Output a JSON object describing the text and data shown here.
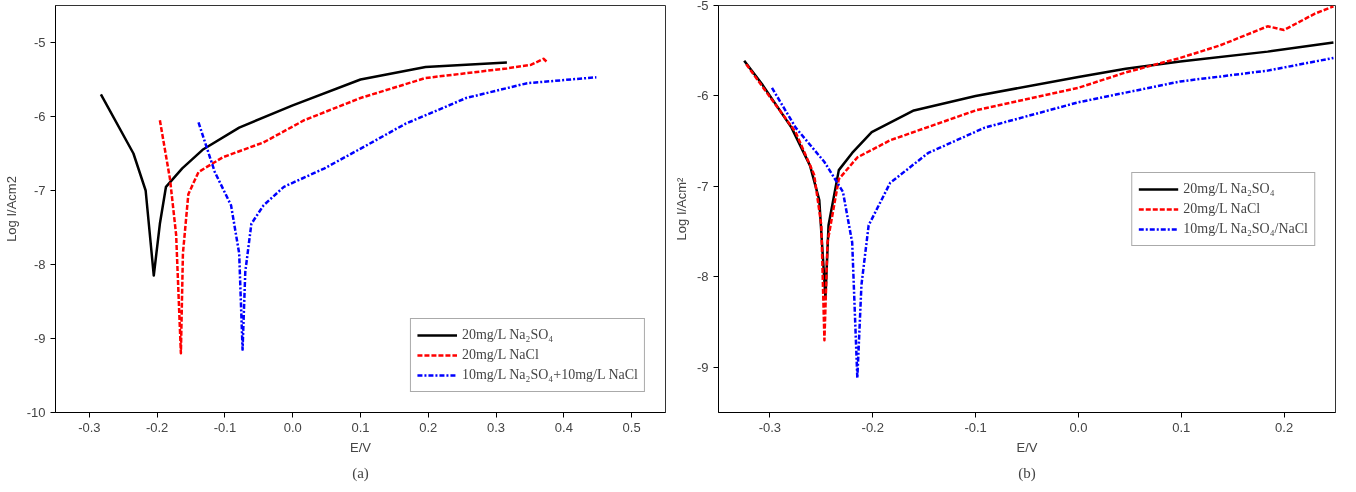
{
  "chart_data": [
    {
      "type": "line",
      "xlabel": "E/V",
      "ylabel": "Log I/Acm2",
      "xlim": [
        -0.35,
        0.55
      ],
      "ylim": [
        -10,
        -4.5
      ],
      "xticks": [
        -0.3,
        -0.2,
        -0.1,
        {
          "value": 0,
          "label": "0.0"
        },
        0.1,
        0.2,
        0.3,
        0.4,
        0.5
      ],
      "yticks": [
        -10,
        -9,
        -8,
        -7,
        -6,
        -5
      ],
      "grid": false,
      "legend": "bottom right",
      "annotations": [
        "(a)"
      ],
      "series": [
        {
          "name": "20mg/L Na₂SO₄",
          "color": "#000000",
          "line_style": "solid",
          "x": [
            -0.283,
            -0.235,
            -0.217,
            -0.205,
            -0.196,
            -0.187,
            -0.163,
            -0.133,
            -0.079,
            0.0,
            0.1,
            0.196,
            0.316
          ],
          "values": [
            -5.7,
            -6.5,
            -7.0,
            -8.15,
            -7.45,
            -6.95,
            -6.7,
            -6.45,
            -6.15,
            -5.85,
            -5.5,
            -5.33,
            -5.27
          ]
        },
        {
          "name": "20mg/L NaCl",
          "color": "#ff0000",
          "line_style": "dashed",
          "x": [
            -0.196,
            -0.181,
            -0.172,
            -0.165,
            -0.162,
            -0.154,
            -0.139,
            -0.103,
            -0.043,
            0.017,
            0.1,
            0.196,
            0.316,
            0.352,
            0.37,
            0.376
          ],
          "values": [
            -6.05,
            -6.85,
            -7.6,
            -9.2,
            -7.85,
            -7.05,
            -6.75,
            -6.55,
            -6.35,
            -6.05,
            -5.75,
            -5.48,
            -5.35,
            -5.3,
            -5.22,
            -5.27
          ]
        },
        {
          "name": "10mg/L Na₂SO₄+10mg/L NaCl",
          "color": "#0000ff",
          "line_style": "dashdot",
          "x": [
            -0.139,
            -0.115,
            -0.091,
            -0.079,
            -0.074,
            -0.07,
            -0.061,
            -0.043,
            -0.013,
            0.047,
            0.107,
            0.166,
            0.256,
            0.346,
            0.448
          ],
          "values": [
            -6.08,
            -6.75,
            -7.2,
            -7.85,
            -9.15,
            -8.1,
            -7.45,
            -7.2,
            -6.95,
            -6.7,
            -6.4,
            -6.1,
            -5.75,
            -5.55,
            -5.47
          ]
        }
      ]
    },
    {
      "type": "line",
      "xlabel": "E/V",
      "ylabel": "Log I/Acm²",
      "xlim": [
        -0.35,
        0.25
      ],
      "ylim": [
        -9.5,
        -5
      ],
      "xticks": [
        -0.3,
        -0.2,
        -0.1,
        {
          "value": 0,
          "label": "0.0"
        },
        0.1,
        0.2
      ],
      "yticks": [
        -9,
        -8,
        -7,
        -6,
        -5
      ],
      "grid": false,
      "legend": "right",
      "annotations": [
        "(b)"
      ],
      "series": [
        {
          "name": "20mg/L Na₂SO₄",
          "color": "#000000",
          "line_style": "solid",
          "x": [
            -0.325,
            -0.307,
            -0.279,
            -0.261,
            -0.252,
            -0.246,
            -0.243,
            -0.233,
            -0.22,
            -0.201,
            -0.16,
            -0.1,
            0.0,
            0.046,
            0.099,
            0.184,
            0.248
          ],
          "values": [
            -5.61,
            -5.88,
            -6.35,
            -6.77,
            -7.15,
            -8.23,
            -7.43,
            -6.82,
            -6.63,
            -6.4,
            -6.16,
            -6.0,
            -5.79,
            -5.7,
            -5.62,
            -5.51,
            -5.41
          ]
        },
        {
          "name": "20mg/L NaCl",
          "color": "#ff0000",
          "line_style": "dashed",
          "x": [
            -0.323,
            -0.302,
            -0.275,
            -0.257,
            -0.25,
            -0.247,
            -0.244,
            -0.233,
            -0.215,
            -0.183,
            -0.1,
            0.0,
            0.046,
            0.099,
            0.138,
            0.184,
            0.2,
            0.23,
            0.248
          ],
          "values": [
            -5.65,
            -5.98,
            -6.4,
            -6.87,
            -7.43,
            -8.7,
            -7.62,
            -6.92,
            -6.68,
            -6.49,
            -6.16,
            -5.91,
            -5.74,
            -5.58,
            -5.44,
            -5.23,
            -5.27,
            -5.09,
            -5.01
          ]
        },
        {
          "name": "10mg/L Na₂SO₄/NaCl",
          "color": "#0000ff",
          "line_style": "dashdot",
          "x": [
            -0.298,
            -0.275,
            -0.247,
            -0.229,
            -0.22,
            -0.215,
            -0.211,
            -0.204,
            -0.183,
            -0.146,
            -0.091,
            0.0,
            0.099,
            0.184,
            0.248
          ],
          "values": [
            -5.91,
            -6.35,
            -6.73,
            -7.06,
            -7.62,
            -9.12,
            -8.09,
            -7.43,
            -6.96,
            -6.63,
            -6.35,
            -6.07,
            -5.84,
            -5.72,
            -5.58
          ]
        }
      ]
    }
  ]
}
